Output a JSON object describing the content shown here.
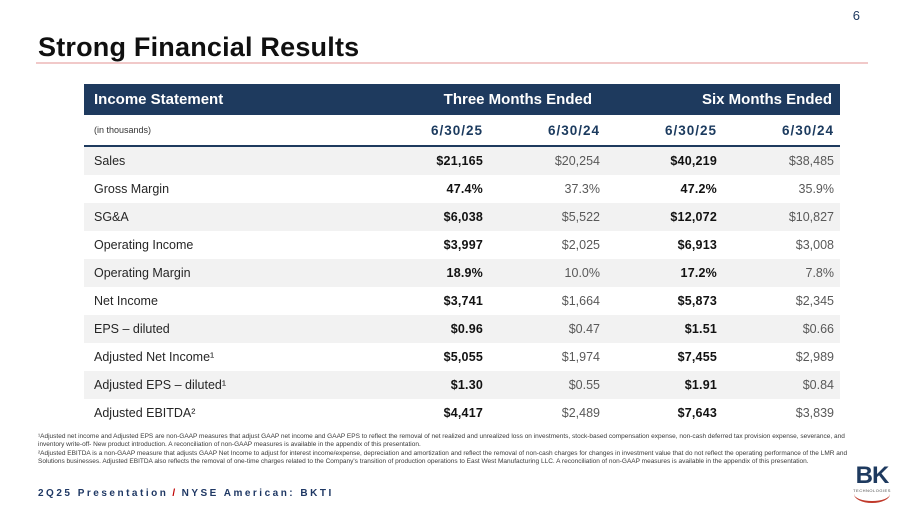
{
  "page": {
    "number": "6"
  },
  "title": "Strong Financial Results",
  "colors": {
    "navy": "#1e3a5e",
    "accent_red": "#c00000",
    "title_rule_pink": "#f1c9c9",
    "row_shade": "#f2f2f2"
  },
  "table": {
    "header": {
      "label": "Income Statement",
      "group1": "Three Months Ended",
      "group2": "Six Months Ended"
    },
    "subheader": {
      "label": "(in thousands)",
      "cols": [
        "6/30/25",
        "6/30/24",
        "6/30/25",
        "6/30/24"
      ]
    },
    "rows": [
      {
        "label": "Sales",
        "values": [
          "$21,165",
          "$20,254",
          "$40,219",
          "$38,485"
        ]
      },
      {
        "label": "Gross Margin",
        "values": [
          "47.4%",
          "37.3%",
          "47.2%",
          "35.9%"
        ]
      },
      {
        "label": "SG&A",
        "values": [
          "$6,038",
          "$5,522",
          "$12,072",
          "$10,827"
        ]
      },
      {
        "label": "Operating Income",
        "values": [
          "$3,997",
          "$2,025",
          "$6,913",
          "$3,008"
        ]
      },
      {
        "label": "Operating Margin",
        "values": [
          "18.9%",
          "10.0%",
          "17.2%",
          "7.8%"
        ]
      },
      {
        "label": "Net Income",
        "values": [
          "$3,741",
          "$1,664",
          "$5,873",
          "$2,345"
        ]
      },
      {
        "label": "EPS – diluted",
        "values": [
          "$0.96",
          "$0.47",
          "$1.51",
          "$0.66"
        ]
      },
      {
        "label": "Adjusted Net Income¹",
        "values": [
          "$5,055",
          "$1,974",
          "$7,455",
          "$2,989"
        ]
      },
      {
        "label": "Adjusted EPS – diluted¹",
        "values": [
          "$1.30",
          "$0.55",
          "$1.91",
          "$0.84"
        ]
      },
      {
        "label": "Adjusted EBITDA²",
        "values": [
          "$4,417",
          "$2,489",
          "$7,643",
          "$3,839"
        ]
      }
    ]
  },
  "footnotes": {
    "note1": "¹Adjusted net income and Adjusted EPS are non-GAAP measures that adjust GAAP net income and GAAP EPS to reflect the removal of net realized and unrealized loss on investments, stock-based compensation expense, non-cash deferred tax provision expense, severance, and inventory write-off- New product introduction.  A reconciliation of non-GAAP measures is available in the appendix of this presentation.",
    "note2": "²Adjusted EBITDA is a non-GAAP measure that adjusts GAAP Net Income to adjust for interest income/expense, depreciation and amortization and reflect  the removal of non-cash charges for changes in investment value that do not reflect the operating performance of the LMR and Solutions businesses.  Adjusted EBITDA also reflects the removal of one-time charges related to the Company's transition of production operations to East West Manufacturing LLC.  A reconciliation of non-GAAP measures is available in the appendix of this presentation."
  },
  "footer": {
    "left": "2Q25 Presentation",
    "separator": "/",
    "right": "NYSE American: BKTI"
  },
  "logo": {
    "text": "BK",
    "subtext": "TECHNOLOGIES"
  }
}
